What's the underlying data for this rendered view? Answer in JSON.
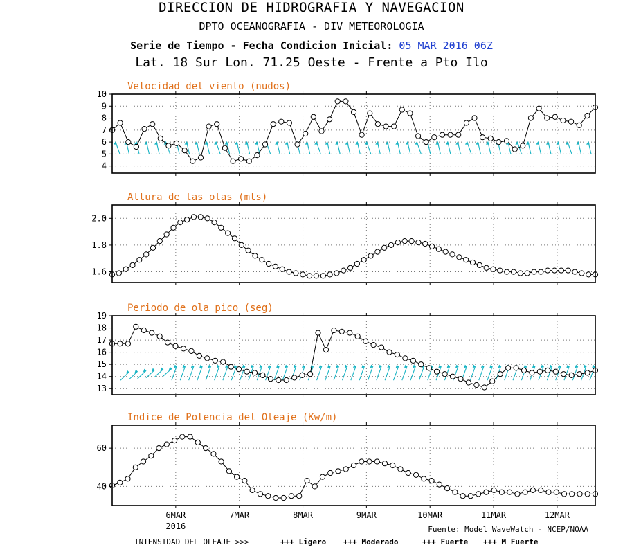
{
  "header": {
    "line1": "DIRECCION DE HIDROGRAFIA Y NAVEGACION",
    "line2": "DPTO OCEANOGRAFIA - DIV METEOROLOGIA",
    "line3_prefix": "Serie de Tiempo - Fecha Condicion Inicial:",
    "line3_date": "05 MAR 2016 06Z",
    "line4": "Lat. 18 Sur  Lon. 71.25 Oeste - Frente a Pto Ilo"
  },
  "footer": {
    "source": "Fuente: Model WaveWatch - NCEP/NOAA",
    "legend_prefix": "INTENSIDAD DEL OLEAJE >>>",
    "legend": [
      {
        "label": "+++ Ligero",
        "color": "#0c97df"
      },
      {
        "label": "+++ Moderado",
        "color": "#10b24e"
      },
      {
        "label": "+++ Fuerte",
        "color": "#e3d01a"
      },
      {
        "label": "+++ M Fuerte",
        "color": "#e31a1a"
      }
    ]
  },
  "colors": {
    "title": "#e0701a",
    "arrows": "#19b4c4"
  },
  "chart_data": [
    {
      "type": "line",
      "title": "Velocidad del viento (nudos)",
      "ylim": [
        3.4,
        10
      ],
      "yticks": [
        4,
        5,
        6,
        7,
        8,
        9,
        10
      ],
      "xlim": [
        0,
        7.6
      ],
      "x_ticks": [
        "6MAR",
        "7MAR",
        "8MAR",
        "9MAR",
        "10MAR",
        "11MAR",
        "12MAR"
      ],
      "x_year": "2016",
      "grid": true,
      "direction_arrows": true,
      "values": [
        7.0,
        7.6,
        6.0,
        5.6,
        7.1,
        7.5,
        6.3,
        5.7,
        5.9,
        5.3,
        4.4,
        4.7,
        7.3,
        7.5,
        5.5,
        4.4,
        4.6,
        4.4,
        4.9,
        5.8,
        7.5,
        7.7,
        7.6,
        5.8,
        6.7,
        8.1,
        6.9,
        7.9,
        9.4,
        9.4,
        8.5,
        6.6,
        8.4,
        7.5,
        7.3,
        7.3,
        8.7,
        8.4,
        6.5,
        6.0,
        6.4,
        6.6,
        6.6,
        6.6,
        7.6,
        8.0,
        6.4,
        6.3,
        6.0,
        6.1,
        5.4,
        5.7,
        8.0,
        8.8,
        8.0,
        8.1,
        7.8,
        7.7,
        7.4,
        8.2,
        8.9
      ]
    },
    {
      "type": "line",
      "title": "Altura de las olas (mts)",
      "ylim": [
        1.52,
        2.1
      ],
      "yticks": [
        1.6,
        1.8,
        2.0
      ],
      "xlim": [
        0,
        7.6
      ],
      "grid": true,
      "values": [
        1.58,
        1.59,
        1.62,
        1.65,
        1.69,
        1.73,
        1.78,
        1.83,
        1.88,
        1.93,
        1.97,
        1.99,
        2.01,
        2.01,
        2.0,
        1.97,
        1.93,
        1.89,
        1.85,
        1.8,
        1.76,
        1.72,
        1.69,
        1.66,
        1.64,
        1.62,
        1.6,
        1.59,
        1.58,
        1.57,
        1.57,
        1.57,
        1.58,
        1.59,
        1.61,
        1.63,
        1.66,
        1.69,
        1.72,
        1.75,
        1.78,
        1.8,
        1.82,
        1.83,
        1.83,
        1.82,
        1.81,
        1.79,
        1.77,
        1.75,
        1.73,
        1.71,
        1.69,
        1.67,
        1.65,
        1.63,
        1.62,
        1.61,
        1.6,
        1.6,
        1.59,
        1.59,
        1.6,
        1.6,
        1.61,
        1.61,
        1.61,
        1.61,
        1.6,
        1.59,
        1.58,
        1.58
      ]
    },
    {
      "type": "line",
      "title": "Periodo de ola pico (seg)",
      "ylim": [
        12.5,
        19
      ],
      "yticks": [
        13,
        14,
        15,
        16,
        17,
        18,
        19
      ],
      "xlim": [
        0,
        7.6
      ],
      "grid": true,
      "direction_arrows": true,
      "values": [
        16.7,
        16.7,
        16.7,
        18.1,
        17.8,
        17.6,
        17.3,
        16.8,
        16.5,
        16.3,
        16.1,
        15.7,
        15.5,
        15.3,
        15.2,
        14.8,
        14.6,
        14.4,
        14.3,
        14.1,
        13.8,
        13.7,
        13.7,
        13.9,
        14.1,
        14.2,
        17.6,
        16.2,
        17.8,
        17.7,
        17.6,
        17.3,
        16.9,
        16.6,
        16.4,
        16.0,
        15.8,
        15.5,
        15.3,
        15.0,
        14.7,
        14.4,
        14.2,
        14.0,
        13.8,
        13.5,
        13.3,
        13.1,
        13.6,
        14.2,
        14.7,
        14.7,
        14.5,
        14.3,
        14.4,
        14.5,
        14.4,
        14.2,
        14.1,
        14.2,
        14.3,
        14.5
      ]
    },
    {
      "type": "line",
      "title": "Indice de Potencia del Oleaje (Kw/m)",
      "ylim": [
        30,
        72
      ],
      "yticks": [
        40,
        60
      ],
      "xlim": [
        0,
        7.6
      ],
      "grid": true,
      "values": [
        40.5,
        42,
        44,
        50,
        53,
        56,
        60,
        62,
        64,
        66,
        66,
        63,
        60,
        57,
        53,
        48,
        45,
        43,
        38,
        36,
        35,
        34,
        34,
        35,
        35,
        43,
        40,
        45,
        47,
        48,
        49,
        51,
        53,
        53,
        53,
        52,
        51,
        49,
        47,
        46,
        44,
        43,
        41,
        39,
        37,
        35,
        35,
        36,
        37,
        38,
        37,
        37,
        36,
        37,
        38,
        38,
        37,
        37,
        36,
        36,
        36,
        36,
        36
      ]
    }
  ]
}
